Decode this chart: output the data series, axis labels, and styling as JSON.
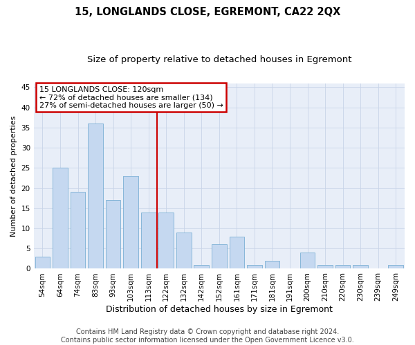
{
  "title": "15, LONGLANDS CLOSE, EGREMONT, CA22 2QX",
  "subtitle": "Size of property relative to detached houses in Egremont",
  "xlabel": "Distribution of detached houses by size in Egremont",
  "ylabel": "Number of detached properties",
  "categories": [
    "54sqm",
    "64sqm",
    "74sqm",
    "83sqm",
    "93sqm",
    "103sqm",
    "113sqm",
    "122sqm",
    "132sqm",
    "142sqm",
    "152sqm",
    "161sqm",
    "171sqm",
    "181sqm",
    "191sqm",
    "200sqm",
    "210sqm",
    "220sqm",
    "230sqm",
    "239sqm",
    "249sqm"
  ],
  "values": [
    3,
    25,
    19,
    36,
    17,
    23,
    14,
    14,
    9,
    1,
    6,
    8,
    1,
    2,
    0,
    4,
    1,
    1,
    1,
    0,
    1
  ],
  "bar_color": "#c5d8f0",
  "bar_edge_color": "#7bafd4",
  "vline_x": 6.5,
  "annotation_title": "15 LONGLANDS CLOSE: 120sqm",
  "annotation_line1": "← 72% of detached houses are smaller (134)",
  "annotation_line2": "27% of semi-detached houses are larger (50) →",
  "annotation_box_color": "#ffffff",
  "annotation_box_edge": "#cc0000",
  "vline_color": "#cc0000",
  "ylim": [
    0,
    46
  ],
  "yticks": [
    0,
    5,
    10,
    15,
    20,
    25,
    30,
    35,
    40,
    45
  ],
  "grid_color": "#c8d4e8",
  "background_color": "#e8eef8",
  "footer_line1": "Contains HM Land Registry data © Crown copyright and database right 2024.",
  "footer_line2": "Contains public sector information licensed under the Open Government Licence v3.0.",
  "title_fontsize": 10.5,
  "subtitle_fontsize": 9.5,
  "tick_fontsize": 7.5,
  "ylabel_fontsize": 8,
  "xlabel_fontsize": 9,
  "footer_fontsize": 7,
  "annot_fontsize": 8
}
